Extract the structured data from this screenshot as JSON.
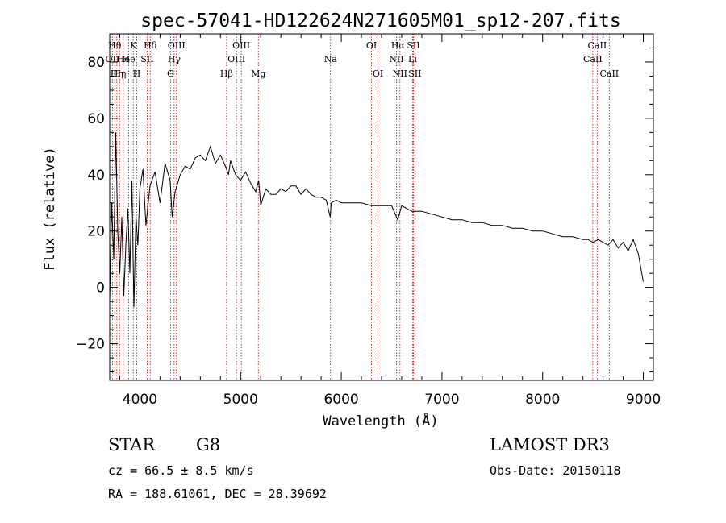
{
  "chart_data": {
    "type": "line",
    "title": "spec-57041-HD122624N271605M01_sp12-207.fits",
    "xlabel": "Wavelength (Å)",
    "ylabel": "Flux (relative)",
    "xlim": [
      3700,
      9100
    ],
    "ylim": [
      -33,
      90
    ],
    "xticks": [
      4000,
      5000,
      6000,
      7000,
      8000,
      9000
    ],
    "yticks": [
      -20,
      0,
      20,
      40,
      60,
      80
    ],
    "grid": false,
    "series": [
      {
        "name": "flux",
        "color": "#000000",
        "x": [
          3700,
          3720,
          3740,
          3760,
          3780,
          3800,
          3820,
          3840,
          3860,
          3880,
          3900,
          3920,
          3940,
          3960,
          3980,
          4000,
          4030,
          4060,
          4100,
          4150,
          4200,
          4250,
          4300,
          4320,
          4350,
          4400,
          4450,
          4500,
          4550,
          4600,
          4650,
          4700,
          4750,
          4800,
          4850,
          4880,
          4900,
          4950,
          5000,
          5050,
          5100,
          5150,
          5180,
          5200,
          5250,
          5300,
          5350,
          5400,
          5450,
          5500,
          5550,
          5600,
          5650,
          5700,
          5750,
          5800,
          5850,
          5890,
          5900,
          5950,
          6000,
          6100,
          6200,
          6300,
          6400,
          6500,
          6560,
          6600,
          6700,
          6800,
          6900,
          7000,
          7100,
          7200,
          7300,
          7400,
          7500,
          7600,
          7700,
          7800,
          7900,
          8000,
          8100,
          8200,
          8300,
          8400,
          8450,
          8500,
          8550,
          8600,
          8650,
          8700,
          8750,
          8800,
          8850,
          8900,
          8950,
          9000
        ],
        "values": [
          -5,
          30,
          10,
          55,
          20,
          5,
          25,
          -3,
          15,
          28,
          5,
          38,
          -7,
          25,
          15,
          35,
          42,
          22,
          36,
          41,
          30,
          44,
          38,
          25,
          34,
          40,
          43,
          42,
          46,
          47,
          45,
          50,
          44,
          47,
          43,
          40,
          45,
          40,
          38,
          41,
          37,
          34,
          38,
          29,
          35,
          33,
          33,
          35,
          34,
          36,
          36,
          33,
          35,
          33,
          32,
          32,
          31,
          25,
          30,
          31,
          30,
          30,
          30,
          29,
          29,
          29,
          24,
          29,
          27,
          27,
          26,
          25,
          24,
          24,
          23,
          23,
          22,
          22,
          21,
          21,
          20,
          20,
          19,
          18,
          18,
          17,
          17,
          16,
          17,
          16,
          15,
          17,
          14,
          16,
          13,
          17,
          12,
          2
        ]
      }
    ],
    "lines": [
      {
        "x": 3727,
        "label": "OII",
        "row": 1
      },
      {
        "x": 3750,
        "label": "Hθ",
        "row": 0
      },
      {
        "x": 3771,
        "label": "Hη",
        "row": 2
      },
      {
        "x": 3798,
        "label": "Hη",
        "row": 2
      },
      {
        "x": 3835,
        "label": "He",
        "row": 1
      },
      {
        "x": 3889,
        "label": "He",
        "row": 1
      },
      {
        "x": 3934,
        "label": "K",
        "row": 0
      },
      {
        "x": 3969,
        "label": "H",
        "row": 2
      },
      {
        "x": 4072,
        "label": "SII",
        "row": 1
      },
      {
        "x": 4102,
        "label": "Hδ",
        "row": 0
      },
      {
        "x": 4304,
        "label": "G",
        "row": 2
      },
      {
        "x": 4340,
        "label": "Hγ",
        "row": 1
      },
      {
        "x": 4363,
        "label": "OIII",
        "row": 0
      },
      {
        "x": 4861,
        "label": "Hβ",
        "row": 2
      },
      {
        "x": 4959,
        "label": "OIII",
        "row": 1
      },
      {
        "x": 5007,
        "label": "OIII",
        "row": 0
      },
      {
        "x": 5176,
        "label": "Mg",
        "row": 2
      },
      {
        "x": 5893,
        "label": "Na",
        "row": 1
      },
      {
        "x": 6300,
        "label": "OI",
        "row": 0
      },
      {
        "x": 6364,
        "label": "OI",
        "row": 2
      },
      {
        "x": 6548,
        "label": "NII",
        "row": 1
      },
      {
        "x": 6563,
        "label": "Hα",
        "row": 0
      },
      {
        "x": 6583,
        "label": "NII",
        "row": 2
      },
      {
        "x": 6708,
        "label": "Li",
        "row": 1
      },
      {
        "x": 6716,
        "label": "SII",
        "row": 0
      },
      {
        "x": 6731,
        "label": "SII",
        "row": 2
      },
      {
        "x": 8498,
        "label": "CaII",
        "row": 1
      },
      {
        "x": 8542,
        "label": "CaII",
        "row": 0
      },
      {
        "x": 8662,
        "label": "CaII",
        "row": 2
      }
    ],
    "line_color": "#c00000"
  },
  "info": {
    "class_label": "STAR",
    "subclass": "G8",
    "survey": "LAMOST DR3",
    "cz": "cz = 66.5 ± 8.5 km/s",
    "obs_date": "Obs-Date: 20150118",
    "coords": "RA = 188.61061, DEC =  28.39692"
  }
}
